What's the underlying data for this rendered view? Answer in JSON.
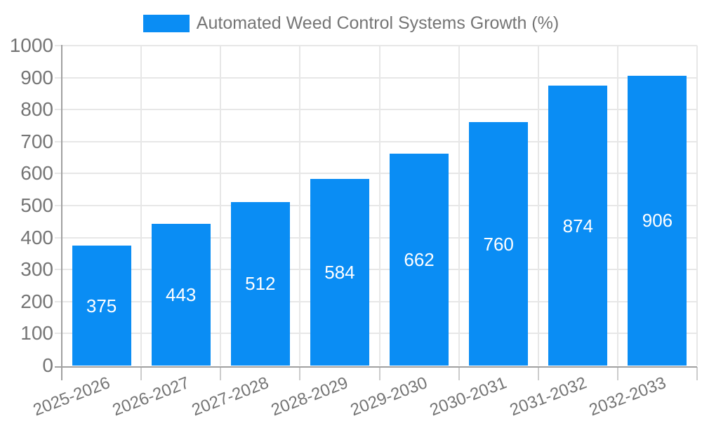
{
  "page": {
    "background": "#ffffff"
  },
  "legend": {
    "position": "top-center",
    "swatch_icon": "legend-swatch"
  },
  "chart_data": {
    "type": "bar",
    "title": "",
    "categories": [
      "2025-2026",
      "2026-2027",
      "2027-2028",
      "2028-2029",
      "2029-2030",
      "2030-2031",
      "2031-2032",
      "2032-2033"
    ],
    "series": [
      {
        "name": "Automated Weed Control Systems Growth (%)",
        "values": [
          375,
          443,
          512,
          584,
          662,
          760,
          874,
          906
        ]
      }
    ],
    "xlabel": "",
    "ylabel": "",
    "ylim": [
      0,
      1000
    ],
    "ytick_step": 100,
    "yticks": [
      0,
      100,
      200,
      300,
      400,
      500,
      600,
      700,
      800,
      900,
      1000
    ],
    "grid": true,
    "show_bar_value_labels": true,
    "legend_position": "top-center",
    "colors": {
      "bar": "#0a8df4",
      "grid": "#e7e7e7",
      "axis": "#a0a0a0",
      "tick": "#cccccc",
      "text": "#757575",
      "bar_label": "#ffffff",
      "background": "#ffffff"
    }
  }
}
